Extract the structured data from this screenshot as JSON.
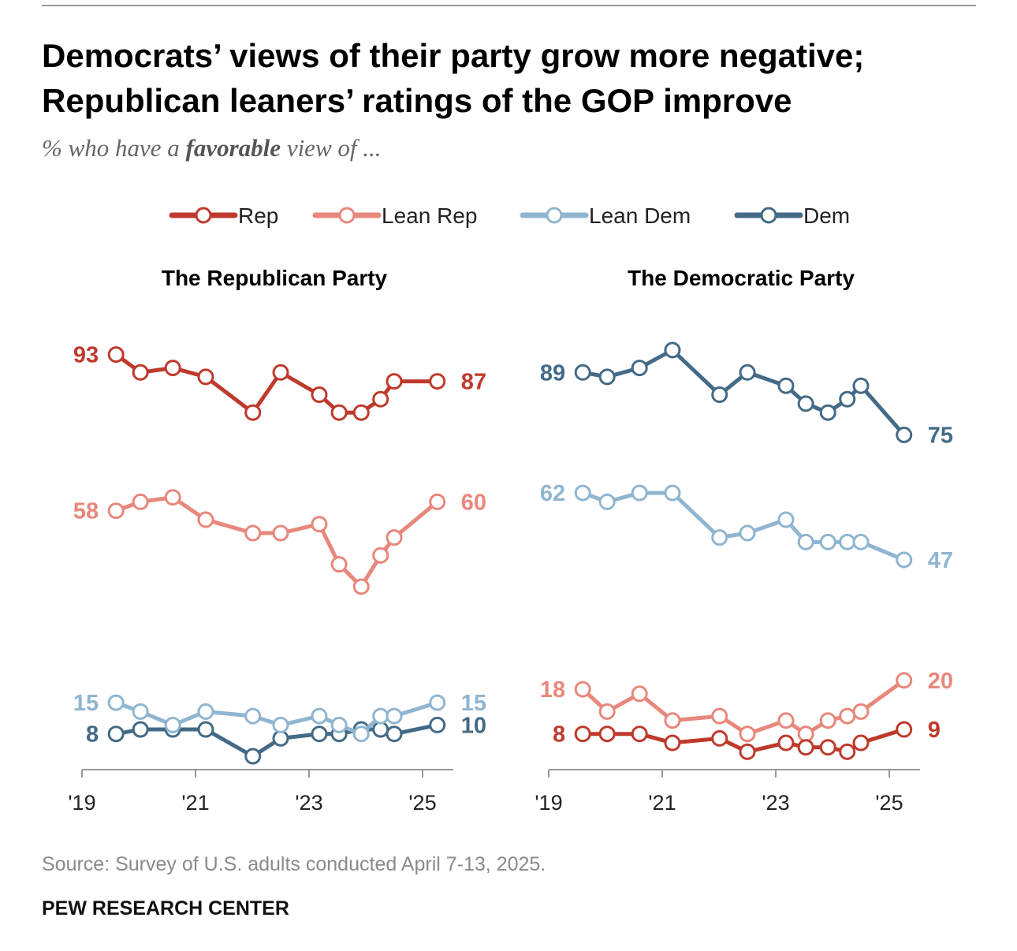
{
  "title": "Democrats’ views of their party grow more negative; Republican leaners’ ratings of the GOP improve",
  "subtitle": {
    "pre": "% who have a ",
    "emph": "favorable",
    "post": " view of ..."
  },
  "source": "Source: Survey of U.S. adults conducted April 7-13, 2025.",
  "brand": "PEW RESEARCH CENTER",
  "legend": [
    {
      "label": "Rep",
      "color": "#be3a2c"
    },
    {
      "label": "Lean Rep",
      "color": "#e8877b"
    },
    {
      "label": "Lean Dem",
      "color": "#8fb5d0"
    },
    {
      "label": "Dem",
      "color": "#436a86"
    }
  ],
  "chart_data": [
    {
      "type": "line",
      "title": "The Republican Party",
      "x_ticks": [
        "'19",
        "'21",
        "'23",
        "'25"
      ],
      "x": [
        2019.6,
        2020.03,
        2020.6,
        2021.18,
        2022.01,
        2022.5,
        2023.18,
        2023.53,
        2023.92,
        2024.26,
        2024.5,
        2025.26
      ],
      "ylim": [
        0,
        100
      ],
      "series": [
        {
          "name": "Rep",
          "color": "#be3a2c",
          "values": [
            93,
            89,
            90,
            88,
            80,
            89,
            84,
            80,
            80,
            83,
            87,
            87
          ]
        },
        {
          "name": "Lean Rep",
          "color": "#e8877b",
          "values": [
            58,
            60,
            61,
            56,
            53,
            53,
            55,
            46,
            41,
            48,
            52,
            60
          ]
        },
        {
          "name": "Lean Dem",
          "color": "#8fb5d0",
          "values": [
            15,
            13,
            10,
            13,
            12,
            10,
            12,
            10,
            8,
            12,
            12,
            15
          ]
        },
        {
          "name": "Dem",
          "color": "#436a86",
          "values": [
            8,
            9,
            9,
            9,
            3,
            7,
            8,
            8,
            9,
            9,
            8,
            10
          ]
        }
      ]
    },
    {
      "type": "line",
      "title": "The Democratic Party",
      "x_ticks": [
        "'19",
        "'21",
        "'23",
        "'25"
      ],
      "x": [
        2019.6,
        2020.03,
        2020.6,
        2021.18,
        2022.01,
        2022.5,
        2023.18,
        2023.53,
        2023.92,
        2024.26,
        2024.5,
        2025.26
      ],
      "ylim": [
        0,
        100
      ],
      "series": [
        {
          "name": "Rep",
          "color": "#be3a2c",
          "values": [
            8,
            8,
            8,
            6,
            7,
            4,
            6,
            5,
            5,
            4,
            6,
            9
          ]
        },
        {
          "name": "Lean Rep",
          "color": "#e8877b",
          "values": [
            18,
            13,
            17,
            11,
            12,
            8,
            11,
            8,
            11,
            12,
            13,
            20
          ]
        },
        {
          "name": "Lean Dem",
          "color": "#8fb5d0",
          "values": [
            62,
            60,
            62,
            62,
            52,
            53,
            56,
            51,
            51,
            51,
            51,
            47
          ]
        },
        {
          "name": "Dem",
          "color": "#436a86",
          "values": [
            89,
            88,
            90,
            94,
            84,
            89,
            86,
            82,
            80,
            83,
            86,
            75
          ]
        }
      ]
    }
  ]
}
